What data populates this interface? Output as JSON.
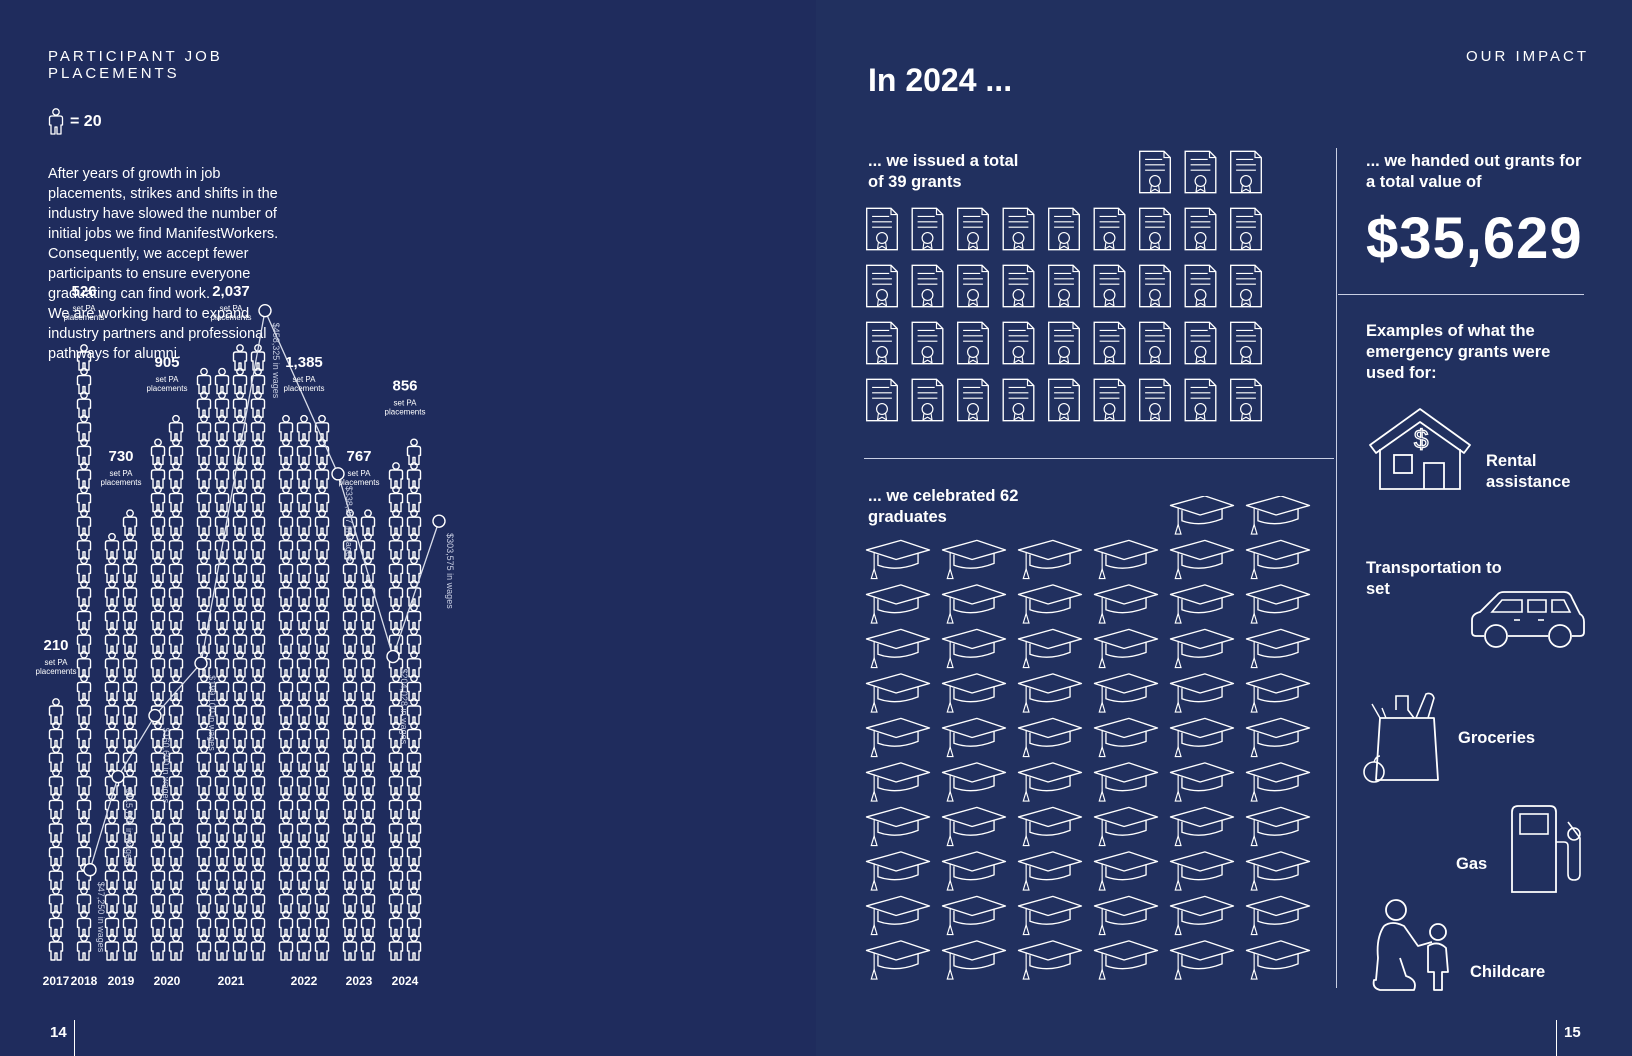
{
  "left_page": {
    "section_title": "PARTICIPANT JOB PLACEMENTS",
    "legend": {
      "icon": "person-icon",
      "label": "= 20"
    },
    "intro_paragraphs": [
      "After years of growth in job placements, strikes and shifts in the industry have slowed the number of initial jobs we find ManifestWorkers. Consequently, we accept fewer participants to ensure everyone graduating can find work.",
      "We are working hard to expand industry partners and professional pathways for alumni."
    ],
    "page_number": "14"
  },
  "right_page": {
    "section_title": "OUR IMPACT",
    "heading": "In 2024 ...",
    "grants_issued_text": "... we issued a total of 39 grants",
    "grants_issued_count": 39,
    "graduates_text": "... we celebrated 62 graduates",
    "graduates_count": 62,
    "grants_value_text": "... we handed out grants for a total value of",
    "grants_value": "$35,629",
    "examples_heading": "Examples of what the emergency grants were used for:",
    "examples": [
      {
        "label": "Rental assistance",
        "icon": "house-dollar-icon"
      },
      {
        "label": "Transportation to set",
        "icon": "car-icon"
      },
      {
        "label": "Groceries",
        "icon": "grocery-bag-icon"
      },
      {
        "label": "Gas",
        "icon": "gas-pump-icon"
      },
      {
        "label": "Childcare",
        "icon": "childcare-icon"
      }
    ],
    "page_number": "15"
  },
  "chart_data": {
    "type": "bar",
    "title": "",
    "unit_per_icon": 20,
    "categories": [
      "2017",
      "2018",
      "2019",
      "2020",
      "2021",
      "2022",
      "2023",
      "2024"
    ],
    "placement_sublabel": "set PA placements",
    "series": [
      {
        "values": [
          210,
          526,
          730,
          905,
          2037,
          1385,
          767,
          856
        ],
        "value_labels": [
          "210",
          "526",
          "730",
          "905",
          "2,037",
          "1,385",
          "767",
          "856"
        ]
      },
      {
        "values": [
          47250,
          115720,
          160600,
          199100,
          458325,
          338347,
          204028,
          303575
        ],
        "value_labels": [
          "$47,250 in wages",
          "$115,720 in wages",
          "$160,600 in wages",
          "$199,100 in wages",
          "$458,325 in wages",
          "$338,347 in wages",
          "$204,028 in wages",
          "$303,575 in wages"
        ]
      }
    ]
  }
}
